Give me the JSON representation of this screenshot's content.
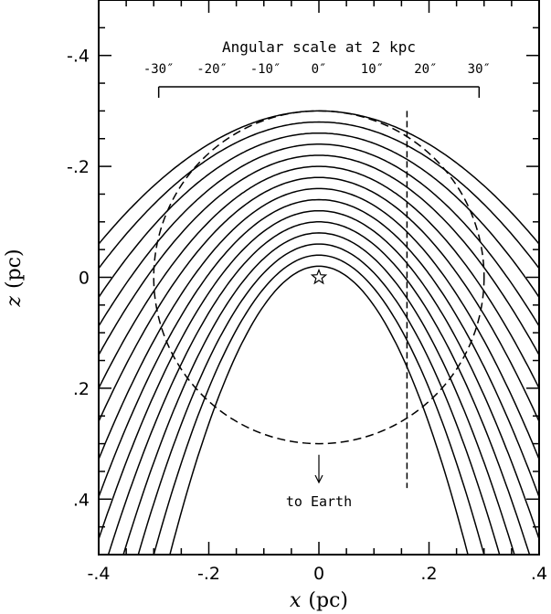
{
  "chart_data": {
    "type": "line",
    "xlabel_var": "x",
    "xlabel_unit": "(pc)",
    "ylabel_var": "z",
    "ylabel_unit": "(pc)",
    "xlim": [
      -0.4,
      0.4
    ],
    "ylim": [
      -0.5,
      0.5
    ],
    "y_inverted": true,
    "x_ticks": [
      {
        "value": -0.4,
        "label": "-.4"
      },
      {
        "value": -0.2,
        "label": "-.2"
      },
      {
        "value": 0,
        "label": "0"
      },
      {
        "value": 0.2,
        "label": ".2"
      },
      {
        "value": 0.4,
        "label": ".4"
      }
    ],
    "y_ticks": [
      {
        "value": -0.4,
        "label": "-.4"
      },
      {
        "value": -0.2,
        "label": "-.2"
      },
      {
        "value": 0,
        "label": "0"
      },
      {
        "value": 0.2,
        "label": ".2"
      },
      {
        "value": 0.4,
        "label": ".4"
      }
    ],
    "minor_tick_step": 0.05,
    "curves": {
      "shape": "parabola z = z0 + k * x^2",
      "apex_z": [
        -0.3,
        -0.28,
        -0.26,
        -0.24,
        -0.22,
        -0.2,
        -0.18,
        -0.16,
        -0.14,
        -0.12,
        -0.1,
        -0.08,
        -0.06,
        -0.04,
        -0.02
      ],
      "curvature_k": [
        1.5,
        1.65,
        1.85,
        2.05,
        2.25,
        2.5,
        2.75,
        3.05,
        3.35,
        3.7,
        4.1,
        4.6,
        5.2,
        6.0,
        7.1
      ]
    },
    "circle": {
      "center": [
        0,
        0
      ],
      "radius": 0.3,
      "style": "dashed"
    },
    "vertical_line": {
      "x": 0.16,
      "z_range": [
        -0.3,
        0.38
      ],
      "style": "dashed"
    },
    "star": {
      "x": 0,
      "z": 0
    },
    "arrow": {
      "x": 0,
      "z_from": 0.32,
      "z_to": 0.37,
      "label": "to Earth"
    },
    "angular_scale": {
      "title": "Angular scale at 2 kpc",
      "ticks": [
        "-30″",
        "-20″",
        "-10″",
        "0″",
        "10″",
        "20″",
        "30″"
      ],
      "arcsec_values": [
        -30,
        -20,
        -10,
        0,
        10,
        20,
        30
      ],
      "pc_per_arcsec": 0.0097
    }
  }
}
